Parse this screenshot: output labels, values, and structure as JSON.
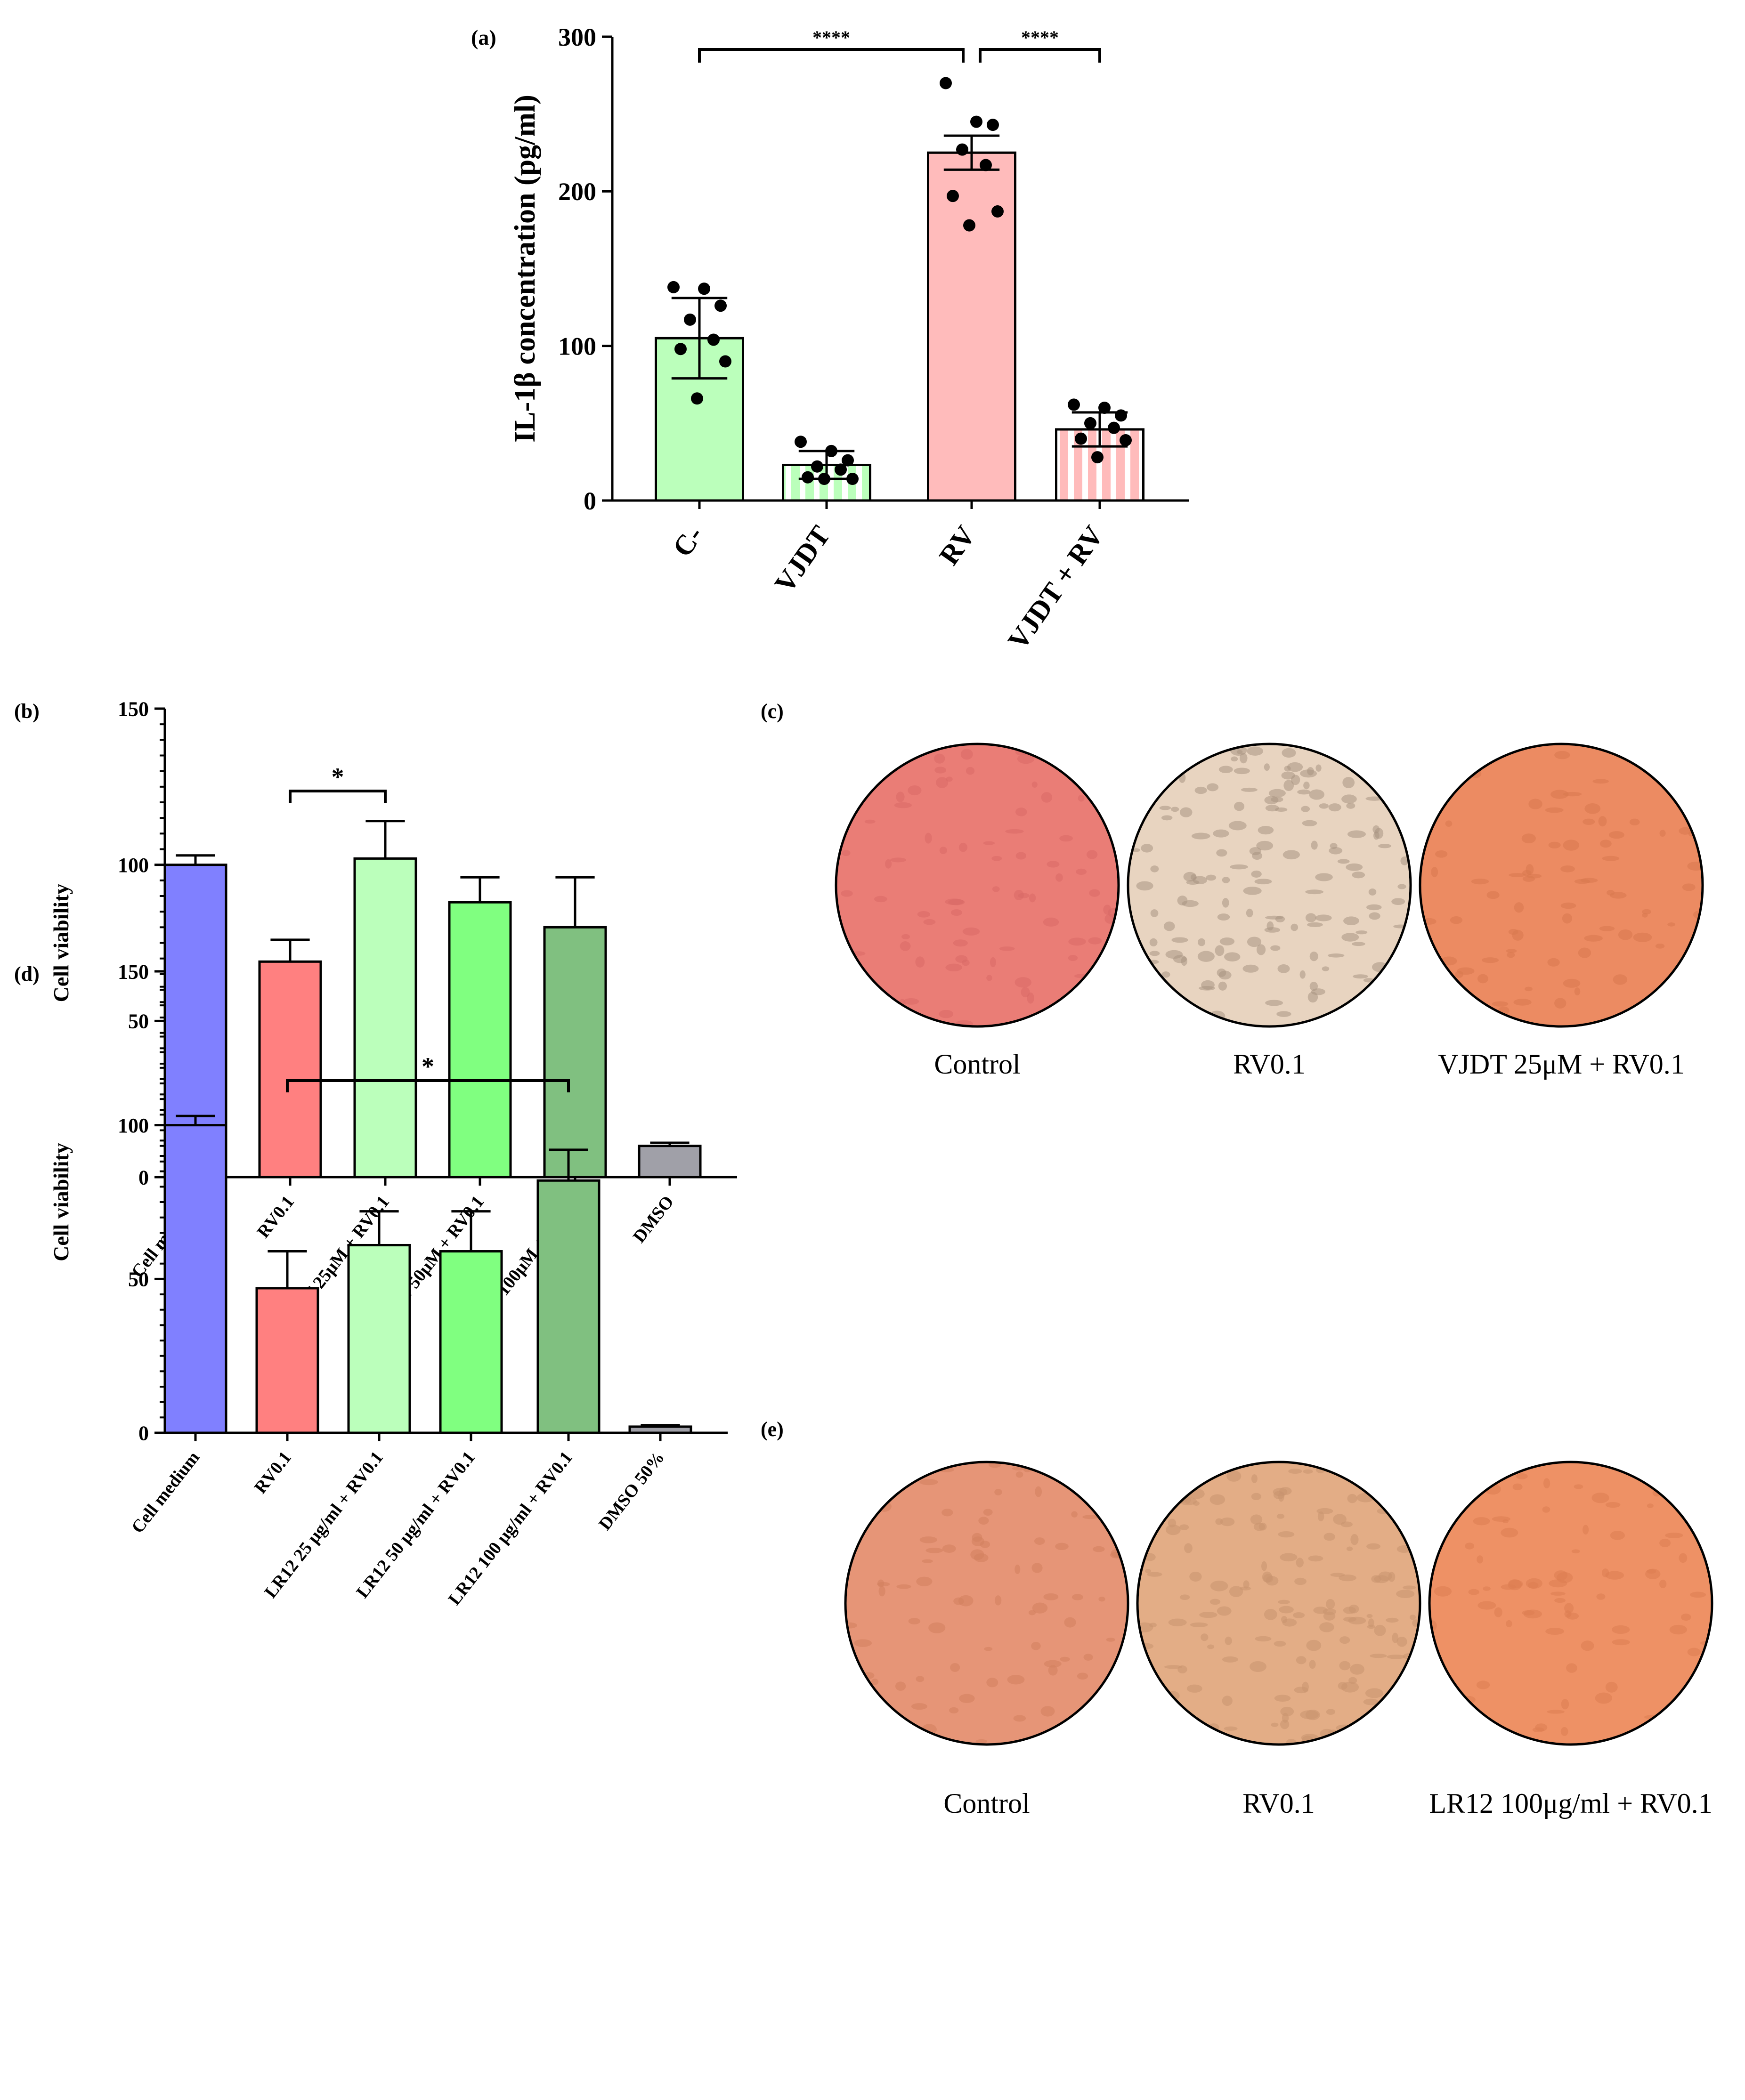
{
  "colors": {
    "blue": "#8080ff",
    "red": "#ff8080",
    "light_green": "#bbffbb",
    "green": "#80ff80",
    "dark_green": "#80c080",
    "grey": "#a0a0a8",
    "pink": "#ffbbbb"
  },
  "chart_data": [
    {
      "id": "a",
      "panel_label": "(a)",
      "type": "bar",
      "ylabel": "IL-1β concentration (pg/ml)",
      "ylim": [
        0,
        300
      ],
      "yticks": [
        0,
        100,
        200,
        300
      ],
      "categories": [
        "C-",
        "VJDT",
        "RV",
        "VJDT + RV"
      ],
      "values": [
        105,
        23,
        225,
        46
      ],
      "errors": [
        26,
        9,
        11,
        11
      ],
      "bar_colors": [
        "#bbffbb",
        "#bbffbb",
        "#ffbbbb",
        "#ffbbbb"
      ],
      "striped": [
        false,
        true,
        false,
        true
      ],
      "points": [
        [
          138,
          137,
          126,
          117,
          104,
          98,
          90,
          66
        ],
        [
          38,
          32,
          26,
          22,
          20,
          15,
          14,
          14
        ],
        [
          270,
          245,
          243,
          227,
          217,
          197,
          187,
          178
        ],
        [
          62,
          60,
          55,
          50,
          47,
          40,
          39,
          28
        ]
      ],
      "significance": [
        {
          "from": 0,
          "to": 2,
          "label": "****"
        },
        {
          "from": 2,
          "to": 3,
          "label": "****"
        }
      ]
    },
    {
      "id": "b",
      "panel_label": "(b)",
      "type": "bar",
      "ylabel": "Cell viability",
      "ylim": [
        0,
        150
      ],
      "yticks": [
        0,
        50,
        100,
        150
      ],
      "categories": [
        "Cell medium",
        "RV0.1",
        "VJDT 25μM + RV0.1",
        "VJDT 50μM + RV0.1",
        "VJDT 100μM + RV0.1",
        "DMSO"
      ],
      "values": [
        100,
        69,
        102,
        88,
        80,
        10
      ],
      "errors": [
        3,
        7,
        12,
        8,
        16,
        1
      ],
      "bar_colors": [
        "#8080ff",
        "#ff8080",
        "#bbffbb",
        "#80ff80",
        "#80c080",
        "#a0a0a8"
      ],
      "significance": [
        {
          "from": 1,
          "to": 2,
          "label": "*"
        }
      ]
    },
    {
      "id": "d",
      "panel_label": "(d)",
      "type": "bar",
      "ylabel": "Cell viability",
      "ylim": [
        0,
        150
      ],
      "yticks": [
        0,
        50,
        100,
        150
      ],
      "categories": [
        "Cell medium",
        "RV0.1",
        "LR12 25 μg/ml + RV0.1",
        "LR12 50 μg/ml + RV0.1",
        "LR12 100 μg/ml + RV0.1",
        "DMSO 50%"
      ],
      "values": [
        100,
        47,
        61,
        59,
        82,
        2
      ],
      "errors": [
        3,
        12,
        11,
        13,
        10,
        0.5
      ],
      "bar_colors": [
        "#8080ff",
        "#ff8080",
        "#bbffbb",
        "#80ff80",
        "#80c080",
        "#a0a0a8"
      ],
      "significance": [
        {
          "from": 1,
          "to": 4,
          "label": "*"
        }
      ]
    }
  ],
  "photo_panels": [
    {
      "id": "c",
      "panel_label": "(c)",
      "captions": [
        "Control",
        "RV0.1",
        "VJDT 25μM + RV0.1"
      ],
      "fills": [
        "#ea7d76",
        "#e8d4c0",
        "#ec8b62"
      ],
      "speckle": [
        "#d96a66",
        "#a89482",
        "#d8784e"
      ]
    },
    {
      "id": "e",
      "panel_label": "(e)",
      "captions": [
        "Control",
        "RV0.1",
        "LR12 100μg/ml + RV0.1"
      ],
      "fills": [
        "#e69577",
        "#e3ad86",
        "#ee9165"
      ],
      "speckle": [
        "#d2805f",
        "#c89470",
        "#dc7d52"
      ]
    }
  ]
}
